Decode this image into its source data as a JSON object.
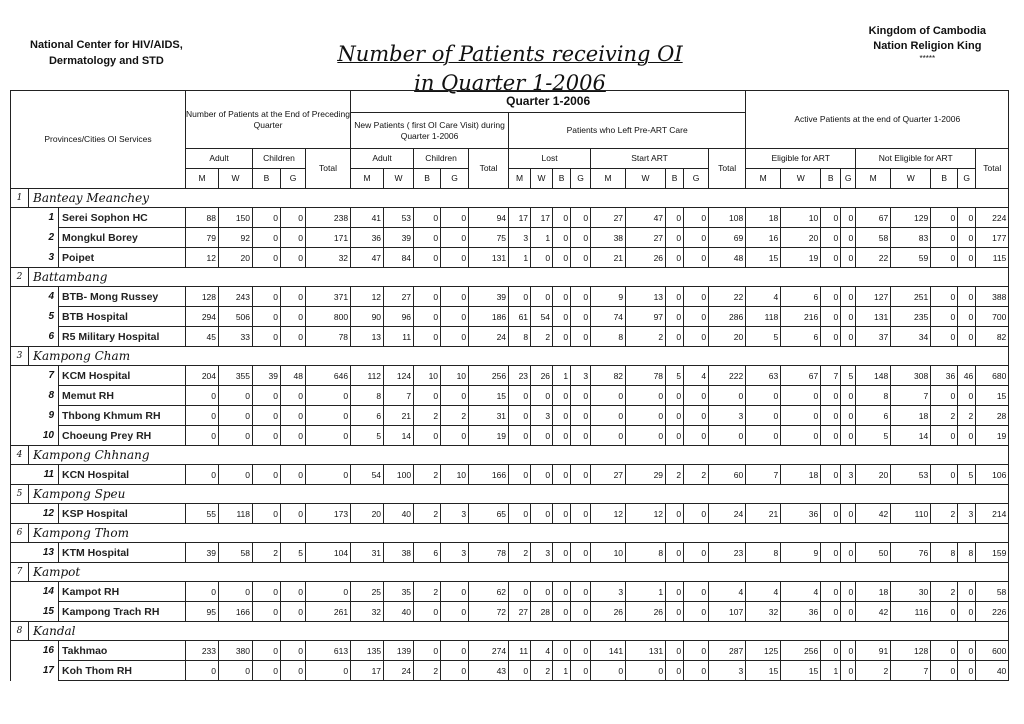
{
  "header": {
    "org_line1": "National Center for HIV/AIDS,",
    "org_line2": "Dermatology and STD",
    "title_line1": "Number of Patients receiving OI",
    "title_line2": "in Quarter 1-2006",
    "kingdom_line1": "Kingdom of Cambodia",
    "kingdom_line2": "Nation Religion King",
    "stars": "*****"
  },
  "columns": {
    "provinces": "Provinces/Cities OI Services",
    "preceding": "Number of Patients at the End of Preceding Quarter",
    "quarter": "Quarter 1-2006",
    "active": "Active Patients at the end of Quarter 1-2006",
    "new_patients": "New Patients ( first OI Care Visit) during Quarter 1-2006",
    "left": "Patients who Left Pre-ART Care",
    "adult": "Adult",
    "children": "Children",
    "total": "Total",
    "lost": "Lost",
    "start_art": "Start ART",
    "eligible": "Eligible for ART",
    "not_eligible": "Not Eligible for ART",
    "m": "M",
    "w": "W",
    "b": "B",
    "g": "G"
  },
  "provinces": [
    {
      "num": "1",
      "name": "Banteay Meanchey",
      "facilities": [
        {
          "idx": "1",
          "name": "Serei Sophon HC",
          "values": [
            88,
            150,
            0,
            0,
            238,
            41,
            53,
            0,
            0,
            94,
            17,
            17,
            0,
            0,
            27,
            47,
            0,
            0,
            108,
            18,
            10,
            0,
            0,
            67,
            129,
            0,
            0,
            224
          ]
        },
        {
          "idx": "2",
          "name": "Mongkul Borey",
          "values": [
            79,
            92,
            0,
            0,
            171,
            36,
            39,
            0,
            0,
            75,
            3,
            1,
            0,
            0,
            38,
            27,
            0,
            0,
            69,
            16,
            20,
            0,
            0,
            58,
            83,
            0,
            0,
            177
          ]
        },
        {
          "idx": "3",
          "name": "Poipet",
          "values": [
            12,
            20,
            0,
            0,
            32,
            47,
            84,
            0,
            0,
            131,
            1,
            0,
            0,
            0,
            21,
            26,
            0,
            0,
            48,
            15,
            19,
            0,
            0,
            22,
            59,
            0,
            0,
            115
          ]
        }
      ]
    },
    {
      "num": "2",
      "name": "Battambang",
      "facilities": [
        {
          "idx": "4",
          "name": "BTB- Mong Russey",
          "values": [
            128,
            243,
            0,
            0,
            371,
            12,
            27,
            0,
            0,
            39,
            0,
            0,
            0,
            0,
            9,
            13,
            0,
            0,
            22,
            4,
            6,
            0,
            0,
            127,
            251,
            0,
            0,
            388
          ]
        },
        {
          "idx": "5",
          "name": "BTB Hospital",
          "values": [
            294,
            506,
            0,
            0,
            800,
            90,
            96,
            0,
            0,
            186,
            61,
            54,
            0,
            0,
            74,
            97,
            0,
            0,
            286,
            118,
            216,
            0,
            0,
            131,
            235,
            0,
            0,
            700
          ]
        },
        {
          "idx": "6",
          "name": "R5 Military Hospital",
          "values": [
            45,
            33,
            0,
            0,
            78,
            13,
            11,
            0,
            0,
            24,
            8,
            2,
            0,
            0,
            8,
            2,
            0,
            0,
            20,
            5,
            6,
            0,
            0,
            37,
            34,
            0,
            0,
            82
          ]
        }
      ]
    },
    {
      "num": "3",
      "name": "Kampong Cham",
      "facilities": [
        {
          "idx": "7",
          "name": "KCM Hospital",
          "values": [
            204,
            355,
            39,
            48,
            646,
            112,
            124,
            10,
            10,
            256,
            23,
            26,
            1,
            3,
            82,
            78,
            5,
            4,
            222,
            63,
            67,
            7,
            5,
            148,
            308,
            36,
            46,
            680
          ]
        },
        {
          "idx": "8",
          "name": "Memut RH",
          "values": [
            0,
            0,
            0,
            0,
            0,
            8,
            7,
            0,
            0,
            15,
            0,
            0,
            0,
            0,
            0,
            0,
            0,
            0,
            0,
            0,
            0,
            0,
            0,
            8,
            7,
            0,
            0,
            15
          ]
        },
        {
          "idx": "9",
          "name": "Thbong Khmum RH",
          "values": [
            0,
            0,
            0,
            0,
            0,
            6,
            21,
            2,
            2,
            31,
            0,
            3,
            0,
            0,
            0,
            0,
            0,
            0,
            3,
            0,
            0,
            0,
            0,
            6,
            18,
            2,
            2,
            28
          ]
        },
        {
          "idx": "10",
          "name": "Choeung Prey RH",
          "values": [
            0,
            0,
            0,
            0,
            0,
            5,
            14,
            0,
            0,
            19,
            0,
            0,
            0,
            0,
            0,
            0,
            0,
            0,
            0,
            0,
            0,
            0,
            0,
            5,
            14,
            0,
            0,
            19
          ]
        }
      ]
    },
    {
      "num": "4",
      "name": "Kampong Chhnang",
      "facilities": [
        {
          "idx": "11",
          "name": "KCN Hospital",
          "values": [
            0,
            0,
            0,
            0,
            0,
            54,
            100,
            2,
            10,
            166,
            0,
            0,
            0,
            0,
            27,
            29,
            2,
            2,
            60,
            7,
            18,
            0,
            3,
            20,
            53,
            0,
            5,
            106
          ]
        }
      ]
    },
    {
      "num": "5",
      "name": "Kampong Speu",
      "facilities": [
        {
          "idx": "12",
          "name": "KSP Hospital",
          "values": [
            55,
            118,
            0,
            0,
            173,
            20,
            40,
            2,
            3,
            65,
            0,
            0,
            0,
            0,
            12,
            12,
            0,
            0,
            24,
            21,
            36,
            0,
            0,
            42,
            110,
            2,
            3,
            214
          ]
        }
      ]
    },
    {
      "num": "6",
      "name": "Kampong Thom",
      "facilities": [
        {
          "idx": "13",
          "name": "KTM Hospital",
          "values": [
            39,
            58,
            2,
            5,
            104,
            31,
            38,
            6,
            3,
            78,
            2,
            3,
            0,
            0,
            10,
            8,
            0,
            0,
            23,
            8,
            9,
            0,
            0,
            50,
            76,
            8,
            8,
            159
          ]
        }
      ]
    },
    {
      "num": "7",
      "name": "Kampot",
      "facilities": [
        {
          "idx": "14",
          "name": "Kampot RH",
          "values": [
            0,
            0,
            0,
            0,
            0,
            25,
            35,
            2,
            0,
            62,
            0,
            0,
            0,
            0,
            3,
            1,
            0,
            0,
            4,
            4,
            4,
            0,
            0,
            18,
            30,
            2,
            0,
            58
          ]
        },
        {
          "idx": "15",
          "name": "Kampong Trach RH",
          "values": [
            95,
            166,
            0,
            0,
            261,
            32,
            40,
            0,
            0,
            72,
            27,
            28,
            0,
            0,
            26,
            26,
            0,
            0,
            107,
            32,
            36,
            0,
            0,
            42,
            116,
            0,
            0,
            226
          ]
        }
      ]
    },
    {
      "num": "8",
      "name": "Kandal",
      "facilities": [
        {
          "idx": "16",
          "name": "Takhmao",
          "values": [
            233,
            380,
            0,
            0,
            613,
            135,
            139,
            0,
            0,
            274,
            11,
            4,
            0,
            0,
            141,
            131,
            0,
            0,
            287,
            125,
            256,
            0,
            0,
            91,
            128,
            0,
            0,
            600
          ]
        },
        {
          "idx": "17",
          "name": "Koh Thom RH",
          "values": [
            0,
            0,
            0,
            0,
            0,
            17,
            24,
            2,
            0,
            43,
            0,
            2,
            1,
            0,
            0,
            0,
            0,
            0,
            3,
            15,
            15,
            1,
            0,
            2,
            7,
            0,
            0,
            40
          ]
        }
      ]
    }
  ]
}
